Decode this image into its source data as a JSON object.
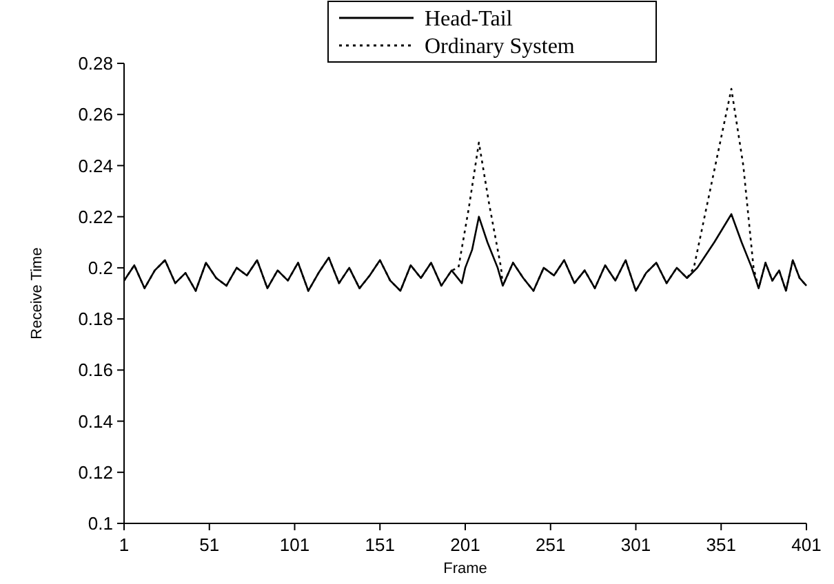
{
  "chart_data": {
    "type": "line",
    "xlabel": "Frame",
    "ylabel": "Receive Time",
    "xlim": [
      1,
      401
    ],
    "xticks": [
      1,
      51,
      101,
      151,
      201,
      251,
      301,
      351,
      401
    ],
    "ylim": [
      0.1,
      0.28
    ],
    "yticks": [
      0.1,
      0.12,
      0.14,
      0.16,
      0.18,
      0.2,
      0.22,
      0.24,
      0.26,
      0.28
    ],
    "grid": false,
    "legend": "top",
    "marker": "none",
    "series": [
      {
        "name": "Head-Tail",
        "color": "#000000",
        "line_style": "solid",
        "x": [
          1,
          7,
          13,
          19,
          25,
          31,
          37,
          43,
          49,
          55,
          61,
          67,
          73,
          79,
          85,
          91,
          97,
          103,
          109,
          115,
          121,
          127,
          133,
          139,
          145,
          151,
          157,
          163,
          169,
          175,
          181,
          187,
          193,
          199,
          201,
          205,
          209,
          214,
          220,
          223,
          229,
          235,
          241,
          247,
          253,
          259,
          265,
          271,
          277,
          283,
          289,
          295,
          301,
          307,
          313,
          319,
          325,
          331,
          337,
          347,
          357,
          363,
          369,
          373,
          377,
          381,
          385,
          389,
          393,
          397,
          401
        ],
        "values": [
          0.195,
          0.201,
          0.192,
          0.199,
          0.203,
          0.194,
          0.198,
          0.191,
          0.202,
          0.196,
          0.193,
          0.2,
          0.197,
          0.203,
          0.192,
          0.199,
          0.195,
          0.202,
          0.191,
          0.198,
          0.204,
          0.194,
          0.2,
          0.192,
          0.197,
          0.203,
          0.195,
          0.191,
          0.201,
          0.196,
          0.202,
          0.193,
          0.199,
          0.194,
          0.2,
          0.207,
          0.22,
          0.21,
          0.2,
          0.193,
          0.202,
          0.196,
          0.191,
          0.2,
          0.197,
          0.203,
          0.194,
          0.199,
          0.192,
          0.201,
          0.195,
          0.203,
          0.191,
          0.198,
          0.202,
          0.194,
          0.2,
          0.196,
          0.2,
          0.21,
          0.221,
          0.21,
          0.2,
          0.192,
          0.202,
          0.195,
          0.199,
          0.191,
          0.203,
          0.196,
          0.193
        ]
      },
      {
        "name": "Ordinary System",
        "color": "#000000",
        "line_style": "dotted",
        "x": [
          1,
          7,
          13,
          19,
          25,
          31,
          37,
          43,
          49,
          55,
          61,
          67,
          73,
          79,
          85,
          91,
          97,
          103,
          109,
          115,
          121,
          127,
          133,
          139,
          145,
          151,
          157,
          163,
          169,
          175,
          181,
          187,
          193,
          197,
          203,
          209,
          215,
          222,
          223,
          229,
          235,
          241,
          247,
          253,
          259,
          265,
          271,
          277,
          283,
          289,
          295,
          301,
          307,
          313,
          319,
          325,
          331,
          335,
          346,
          357,
          364,
          370,
          373,
          377,
          381,
          385,
          389,
          393,
          397,
          401
        ],
        "values": [
          0.195,
          0.201,
          0.192,
          0.199,
          0.203,
          0.194,
          0.198,
          0.191,
          0.202,
          0.196,
          0.193,
          0.2,
          0.197,
          0.203,
          0.192,
          0.199,
          0.195,
          0.202,
          0.191,
          0.198,
          0.204,
          0.194,
          0.2,
          0.192,
          0.197,
          0.203,
          0.195,
          0.191,
          0.201,
          0.196,
          0.202,
          0.193,
          0.199,
          0.2,
          0.223,
          0.249,
          0.225,
          0.2,
          0.193,
          0.202,
          0.196,
          0.191,
          0.2,
          0.197,
          0.203,
          0.194,
          0.199,
          0.192,
          0.201,
          0.195,
          0.203,
          0.191,
          0.198,
          0.202,
          0.194,
          0.2,
          0.196,
          0.2,
          0.235,
          0.27,
          0.24,
          0.2,
          0.192,
          0.202,
          0.195,
          0.199,
          0.191,
          0.203,
          0.196,
          0.193
        ]
      }
    ]
  }
}
